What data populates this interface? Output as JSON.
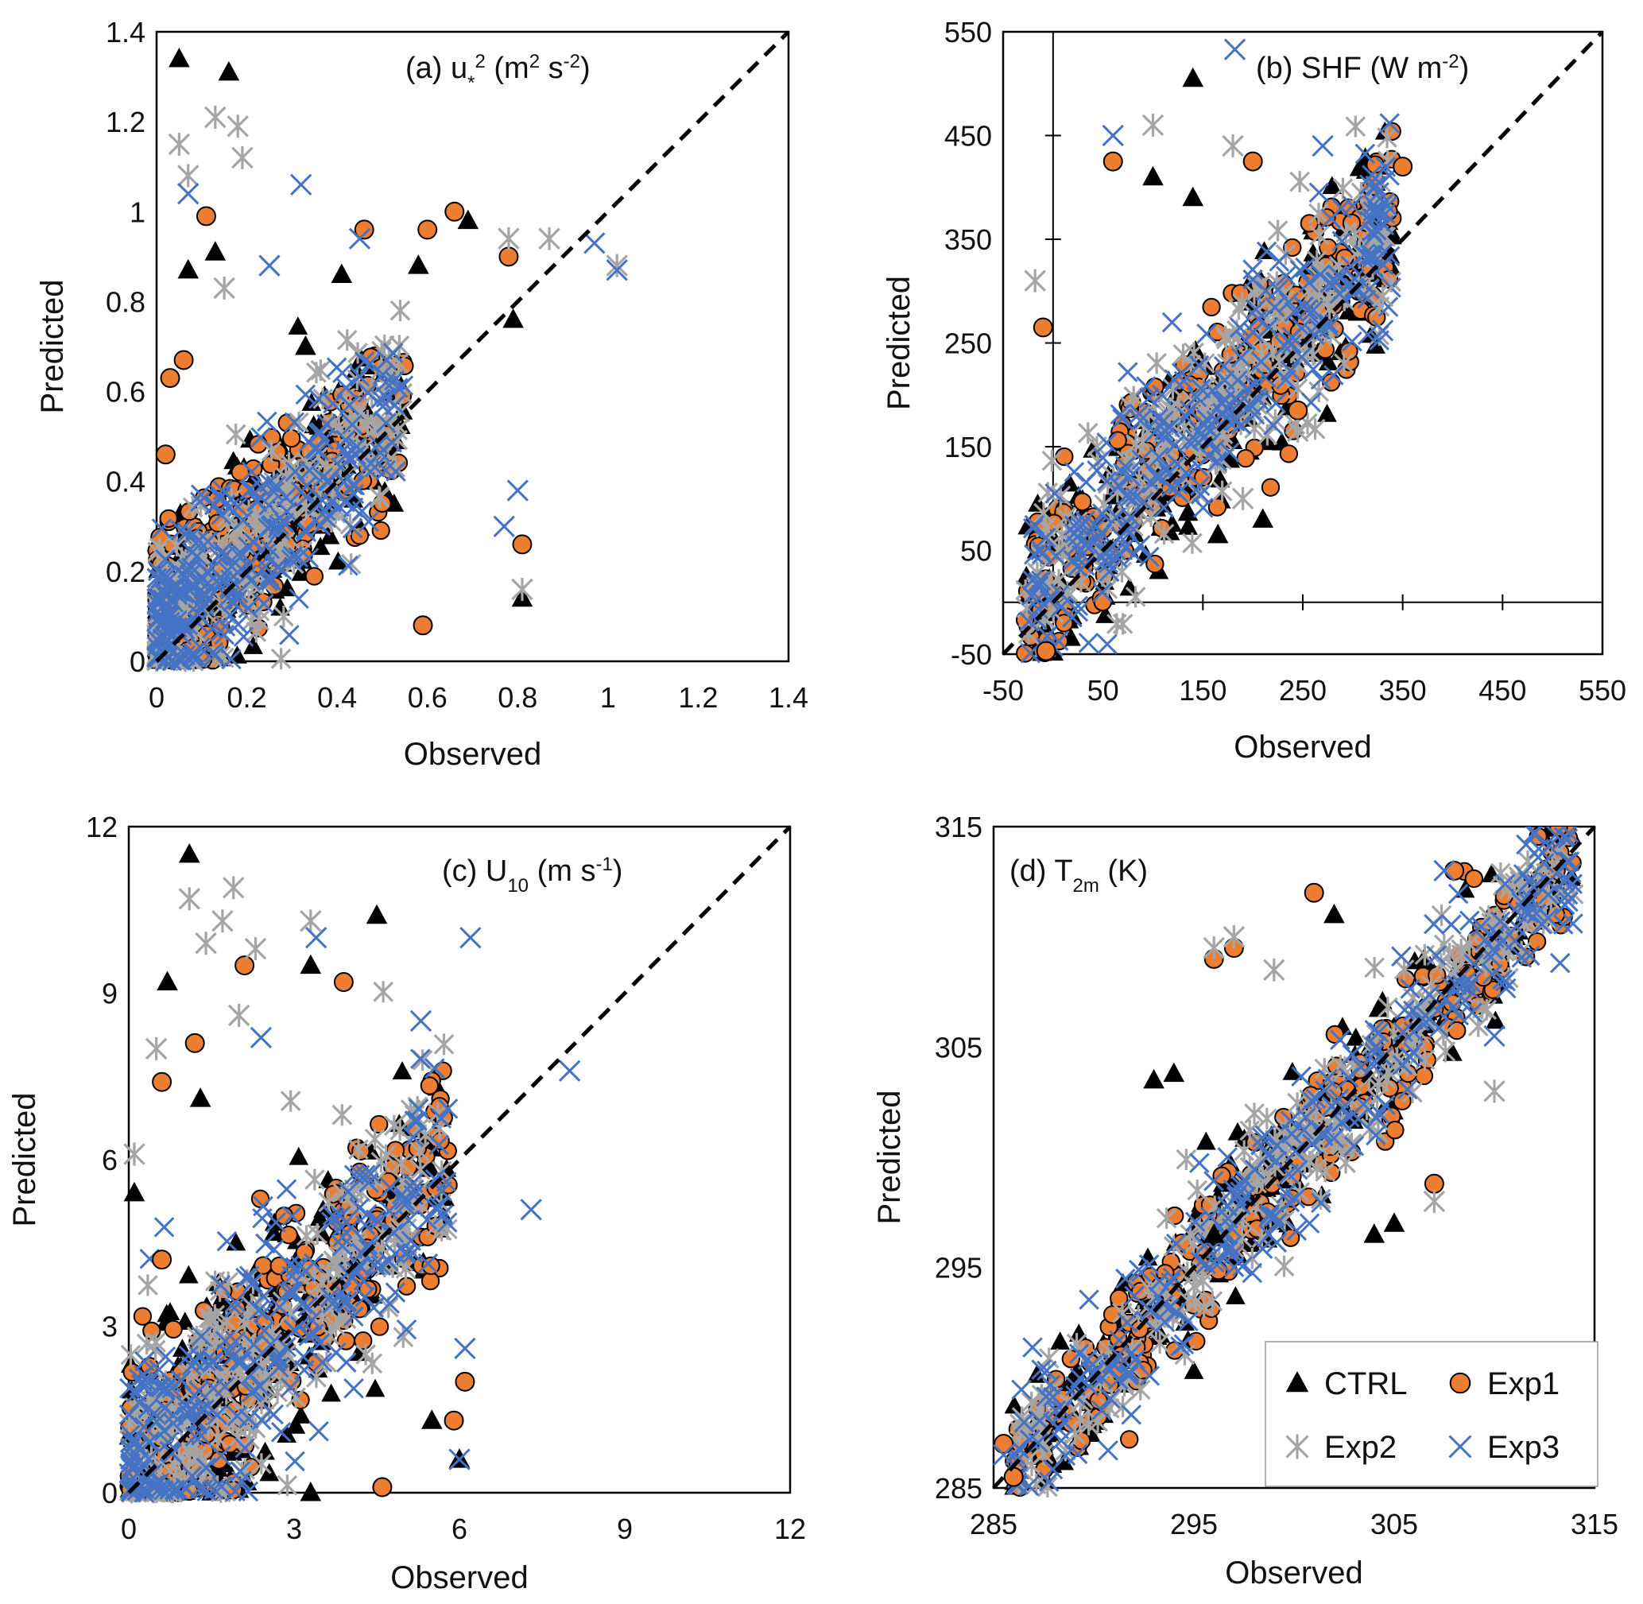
{
  "chart_data": [
    {
      "id": "a",
      "type": "scatter",
      "title": {
        "prefix": "(a) u",
        "sub": "*",
        "sup": "2",
        "units": " (m",
        "units_sup": "2",
        "units_mid": " s",
        "units_sup2": "-2",
        "units_end": ")"
      },
      "xlabel": "Observed",
      "ylabel": "Predicted",
      "xlim": [
        0,
        1.4
      ],
      "ylim": [
        0,
        1.4
      ],
      "xticks": [
        "0",
        "0.2",
        "0.4",
        "0.6",
        "0.8",
        "1",
        "1.2",
        "1.4"
      ],
      "yticks": [
        "0",
        "0.2",
        "0.4",
        "0.6",
        "0.8",
        "1",
        "1.2",
        "1.4"
      ],
      "series": [
        {
          "name": "CTRL",
          "points": [
            [
              0.05,
              1.34
            ],
            [
              0.16,
              1.31
            ],
            [
              0.07,
              0.87
            ],
            [
              0.13,
              0.91
            ],
            [
              0.79,
              0.76
            ],
            [
              0.81,
              0.14
            ],
            [
              0.33,
              0.7
            ],
            [
              0.41,
              0.86
            ],
            [
              0.58,
              0.88
            ],
            [
              0.69,
              0.98
            ]
          ]
        },
        {
          "name": "Exp1",
          "points": [
            [
              0.11,
              0.99
            ],
            [
              0.03,
              0.63
            ],
            [
              0.06,
              0.67
            ],
            [
              0.81,
              0.26
            ],
            [
              0.46,
              0.96
            ],
            [
              0.6,
              0.96
            ],
            [
              0.66,
              1.0
            ],
            [
              0.78,
              0.9
            ],
            [
              0.59,
              0.08
            ],
            [
              0.02,
              0.46
            ]
          ]
        },
        {
          "name": "Exp2",
          "points": [
            [
              0.05,
              1.15
            ],
            [
              0.13,
              1.21
            ],
            [
              0.18,
              1.19
            ],
            [
              0.19,
              1.12
            ],
            [
              0.07,
              1.08
            ],
            [
              0.15,
              0.83
            ],
            [
              0.81,
              0.16
            ],
            [
              0.78,
              0.94
            ],
            [
              0.87,
              0.94
            ],
            [
              1.02,
              0.88
            ]
          ]
        },
        {
          "name": "Exp3",
          "points": [
            [
              0.07,
              1.04
            ],
            [
              0.32,
              1.06
            ],
            [
              0.25,
              0.88
            ],
            [
              0.8,
              0.38
            ],
            [
              0.77,
              0.3
            ],
            [
              0.97,
              0.93
            ],
            [
              1.02,
              0.87
            ],
            [
              0.45,
              0.94
            ]
          ]
        }
      ]
    },
    {
      "id": "b",
      "type": "scatter",
      "title": {
        "text": "(b) SHF (W m",
        "sup": "-2",
        "end": ")"
      },
      "xlabel": "Observed",
      "ylabel": "Predicted",
      "xlim": [
        -50,
        550
      ],
      "ylim": [
        -50,
        550
      ],
      "xticks": [
        "-50",
        "50",
        "150",
        "250",
        "350",
        "450",
        "550"
      ],
      "yticks": [
        "-50",
        "50",
        "150",
        "250",
        "350",
        "450",
        "550"
      ],
      "series": [
        {
          "name": "CTRL",
          "points": [
            [
              140,
              505
            ],
            [
              210,
              80
            ],
            [
              165,
              65
            ],
            [
              100,
              410
            ],
            [
              140,
              390
            ]
          ]
        },
        {
          "name": "Exp1",
          "points": [
            [
              -7,
              -47
            ],
            [
              60,
              425
            ],
            [
              245,
              185
            ],
            [
              -10,
              265
            ],
            [
              200,
              425
            ],
            [
              350,
              420
            ]
          ]
        },
        {
          "name": "Exp2",
          "points": [
            [
              100,
              460
            ],
            [
              190,
              100
            ],
            [
              245,
              165
            ],
            [
              330,
              295
            ],
            [
              -18,
              310
            ],
            [
              180,
              440
            ]
          ]
        },
        {
          "name": "Exp3",
          "points": [
            [
              182,
              533
            ],
            [
              60,
              450
            ],
            [
              330,
              262
            ],
            [
              270,
              440
            ]
          ]
        }
      ]
    },
    {
      "id": "c",
      "type": "scatter",
      "title": {
        "text": "(c) U",
        "sub": "10",
        "units": " (m s",
        "sup": "-1",
        "end": ")"
      },
      "xlabel": "Observed",
      "ylabel": "Predicted",
      "xlim": [
        0,
        12
      ],
      "ylim": [
        0,
        12
      ],
      "xticks": [
        "0",
        "3",
        "6",
        "9",
        "12"
      ],
      "yticks": [
        "0",
        "3",
        "6",
        "9",
        "12"
      ],
      "series": [
        {
          "name": "CTRL",
          "points": [
            [
              1.1,
              11.5
            ],
            [
              0.7,
              9.2
            ],
            [
              4.5,
              10.4
            ],
            [
              3.3,
              9.5
            ],
            [
              0.1,
              5.4
            ],
            [
              3.3,
              0.0
            ],
            [
              5.5,
              1.3
            ],
            [
              6.0,
              0.6
            ],
            [
              1.3,
              7.1
            ]
          ]
        },
        {
          "name": "Exp1",
          "points": [
            [
              2.1,
              9.5
            ],
            [
              1.2,
              8.1
            ],
            [
              0.6,
              7.4
            ],
            [
              4.6,
              0.1
            ],
            [
              6.1,
              2.0
            ],
            [
              5.9,
              1.3
            ],
            [
              0.6,
              4.2
            ],
            [
              3.9,
              9.2
            ]
          ]
        },
        {
          "name": "Exp2",
          "points": [
            [
              1.1,
              10.7
            ],
            [
              1.9,
              10.9
            ],
            [
              1.7,
              10.3
            ],
            [
              1.4,
              9.9
            ],
            [
              2.3,
              9.8
            ],
            [
              2.0,
              8.6
            ],
            [
              0.5,
              8.0
            ],
            [
              0.1,
              6.1
            ],
            [
              3.3,
              10.3
            ]
          ]
        },
        {
          "name": "Exp3",
          "points": [
            [
              3.4,
              10.0
            ],
            [
              6.2,
              10.0
            ],
            [
              2.4,
              8.2
            ],
            [
              5.3,
              8.5
            ],
            [
              6.1,
              2.6
            ],
            [
              6.0,
              0.6
            ],
            [
              7.3,
              5.1
            ],
            [
              8.0,
              7.6
            ]
          ]
        }
      ]
    },
    {
      "id": "d",
      "type": "scatter",
      "title": {
        "text": "(d) T",
        "sub": "2m",
        "end": " (K)"
      },
      "xlabel": "Observed",
      "ylabel": "Predicted",
      "xlim": [
        285,
        315
      ],
      "ylim": [
        285,
        315
      ],
      "xticks": [
        "285",
        "295",
        "305",
        "315"
      ],
      "yticks": [
        "285",
        "295",
        "305",
        "315"
      ],
      "series": [
        {
          "name": "CTRL",
          "points": [
            [
              293,
              303.5
            ],
            [
              294,
              303.8
            ],
            [
              302,
              311
            ],
            [
              305,
              297
            ],
            [
              304,
              296.5
            ],
            [
              296,
              296.5
            ]
          ]
        },
        {
          "name": "Exp1",
          "points": [
            [
              286,
              285.5
            ],
            [
              285.5,
              287
            ],
            [
              307,
              298.8
            ],
            [
              296,
              309
            ],
            [
              297,
              309.5
            ],
            [
              301,
              312
            ],
            [
              308,
              313
            ]
          ]
        },
        {
          "name": "Exp2",
          "points": [
            [
              310,
              303
            ],
            [
              297,
              310
            ],
            [
              296,
              309.5
            ],
            [
              299,
              308.5
            ],
            [
              307,
              298
            ]
          ]
        },
        {
          "name": "Exp3",
          "points": [
            [
              310,
              305.5
            ],
            [
              285.5,
              286.5
            ],
            [
              307.5,
              313
            ],
            [
              313.5,
              314.5
            ]
          ]
        }
      ],
      "legend": {
        "placement": "bottom-right",
        "entries": [
          "CTRL",
          "Exp1",
          "Exp2",
          "Exp3"
        ]
      }
    }
  ],
  "style": {
    "ctrl_color": "#000000",
    "exp1_color": "#ED7D31",
    "exp2_color": "#A5A5A5",
    "exp3_color": "#4472C4",
    "identity_line_color": "#000000"
  }
}
